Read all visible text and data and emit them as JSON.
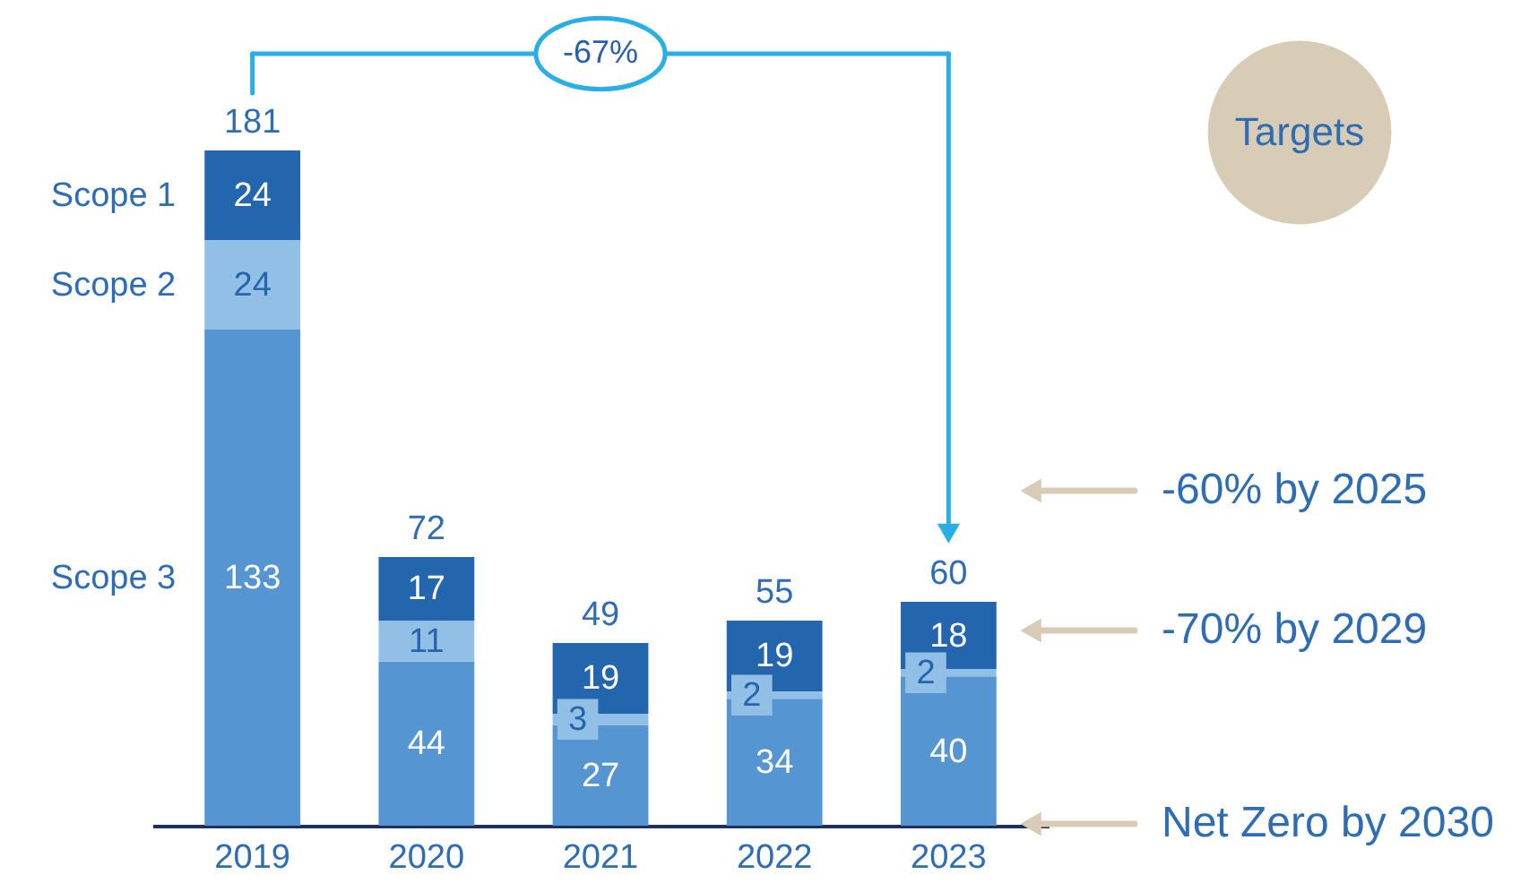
{
  "chart_data": {
    "type": "bar",
    "stacked": true,
    "categories": [
      "2019",
      "2020",
      "2021",
      "2022",
      "2023"
    ],
    "series": [
      {
        "name": "Scope 3",
        "color": "#5595d2",
        "values": [
          133,
          44,
          27,
          34,
          40
        ]
      },
      {
        "name": "Scope 2",
        "color": "#92bfe6",
        "values": [
          24,
          11,
          3,
          2,
          2
        ]
      },
      {
        "name": "Scope 1",
        "color": "#2466ad",
        "values": [
          24,
          17,
          19,
          19,
          18
        ]
      }
    ],
    "totals": [
      "181",
      "72",
      "49",
      "55",
      "60"
    ],
    "data_labels": true,
    "legend": false,
    "tick_labels": "x",
    "annotations": [
      "-67%",
      "Targets",
      "-60% by 2025",
      "-70% by 2029",
      "Net Zero by 2030"
    ]
  }
}
